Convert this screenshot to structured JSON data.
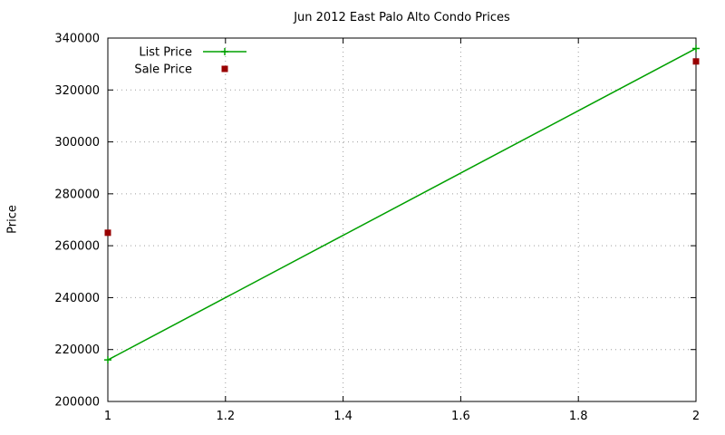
{
  "chart_data": {
    "type": "line",
    "title": "Jun 2012 East Palo Alto Condo Prices",
    "xlabel": "",
    "ylabel": "Price",
    "xlim": [
      1,
      2
    ],
    "ylim": [
      200000,
      340000
    ],
    "xticks": [
      1,
      1.2,
      1.4,
      1.6,
      1.8,
      2
    ],
    "yticks": [
      200000,
      220000,
      240000,
      260000,
      280000,
      300000,
      320000,
      340000
    ],
    "grid": true,
    "legend_position": "top-left-inside",
    "series": [
      {
        "name": "List Price",
        "style": "linespoints",
        "marker": "plus",
        "color": "#00a000",
        "x": [
          1,
          2
        ],
        "values": [
          216000,
          336000
        ]
      },
      {
        "name": "Sale Price",
        "style": "points",
        "marker": "square",
        "color": "#990000",
        "x": [
          1,
          2
        ],
        "values": [
          265000,
          331000
        ]
      }
    ]
  },
  "colors": {
    "frame": "#000000",
    "grid": "#9e9e9e",
    "background": "#ffffff"
  }
}
